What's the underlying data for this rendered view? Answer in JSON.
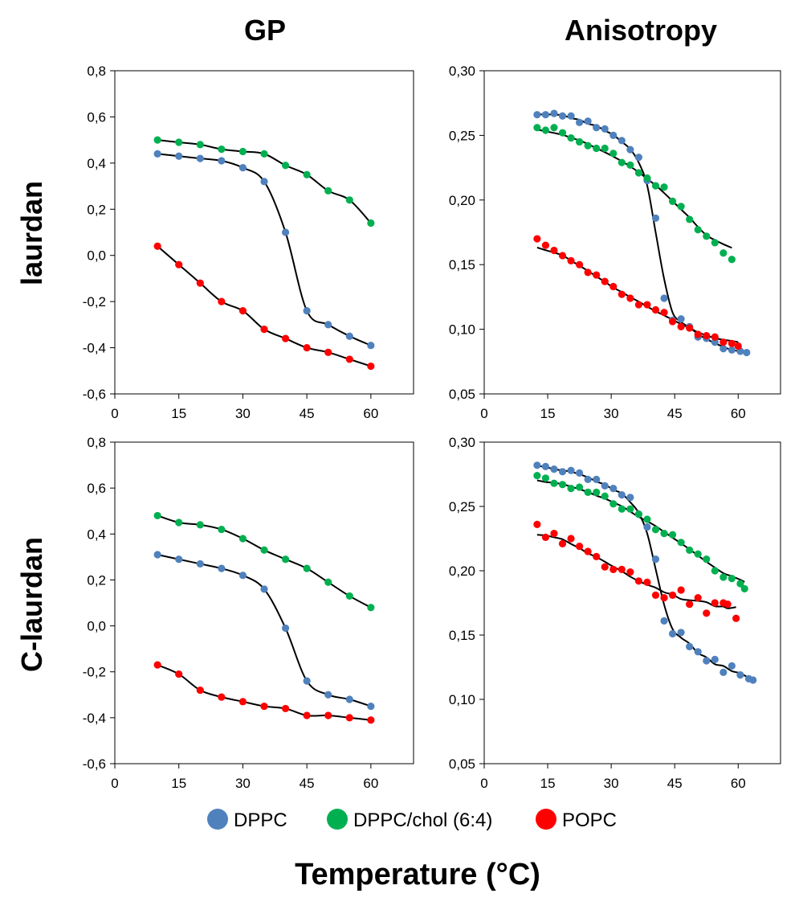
{
  "titles": {
    "col_left": "GP",
    "col_right": "Anisotropy",
    "row_top": "laurdan",
    "row_bottom": "C-laurdan",
    "xlabel": "Temperature (°C)"
  },
  "legend": [
    {
      "name": "DPPC",
      "color": "#4f81bd"
    },
    {
      "name": "DPPC/chol (6:4)",
      "color": "#00b050"
    },
    {
      "name": "POPC",
      "color": "#ff0000"
    }
  ],
  "chart_data": [
    {
      "type": "scatter",
      "panel": "laurdan-GP",
      "xlim": [
        0,
        70
      ],
      "ylim": [
        -0.6,
        0.8
      ],
      "xticks": [
        "0",
        "15",
        "30",
        "45",
        "60"
      ],
      "yticks": [
        "-0,6",
        "-0,4",
        "-0,2",
        "0,0",
        "0,2",
        "0,4",
        "0,6",
        "0,8"
      ],
      "series": [
        {
          "name": "DPPC",
          "x": [
            10,
            15,
            20,
            25,
            30,
            35,
            40,
            45,
            50,
            55,
            60
          ],
          "y": [
            0.44,
            0.43,
            0.42,
            0.41,
            0.38,
            0.32,
            0.1,
            -0.24,
            -0.3,
            -0.35,
            -0.39
          ]
        },
        {
          "name": "DPPC/chol (6:4)",
          "x": [
            10,
            15,
            20,
            25,
            30,
            35,
            40,
            45,
            50,
            55,
            60
          ],
          "y": [
            0.5,
            0.49,
            0.48,
            0.46,
            0.45,
            0.44,
            0.39,
            0.35,
            0.28,
            0.24,
            0.14
          ]
        },
        {
          "name": "POPC",
          "x": [
            10,
            15,
            20,
            25,
            30,
            35,
            40,
            45,
            50,
            55,
            60
          ],
          "y": [
            0.04,
            -0.04,
            -0.12,
            -0.2,
            -0.24,
            -0.32,
            -0.36,
            -0.4,
            -0.42,
            -0.45,
            -0.48
          ]
        }
      ]
    },
    {
      "type": "scatter",
      "panel": "laurdan-Anisotropy",
      "xlim": [
        0,
        70
      ],
      "ylim": [
        0.05,
        0.3
      ],
      "xticks": [
        "0",
        "15",
        "30",
        "45",
        "60"
      ],
      "yticks": [
        "0,05",
        "0,10",
        "0,15",
        "0,20",
        "0,25",
        "0,30"
      ],
      "series": [
        {
          "name": "DPPC",
          "x": [
            12.5,
            14.5,
            16.5,
            18.5,
            20.5,
            22.5,
            24.5,
            26.5,
            28.5,
            30.5,
            32.5,
            34.5,
            36.5,
            38.5,
            40.5,
            42.5,
            44.5,
            46.5,
            48.5,
            50.5,
            52.5,
            54.5,
            56.5,
            58.5,
            60.5,
            62.0
          ],
          "y": [
            0.266,
            0.266,
            0.267,
            0.265,
            0.265,
            0.26,
            0.261,
            0.256,
            0.255,
            0.25,
            0.246,
            0.239,
            0.233,
            0.215,
            0.186,
            0.124,
            0.107,
            0.108,
            0.102,
            0.094,
            0.093,
            0.09,
            0.085,
            0.084,
            0.083,
            0.082
          ]
        },
        {
          "name": "DPPC/chol (6:4)",
          "x": [
            12.5,
            14.5,
            16.5,
            18.5,
            20.5,
            22.5,
            24.5,
            26.5,
            28.5,
            30.5,
            32.5,
            34.5,
            36.5,
            38.5,
            40.5,
            42.5,
            44.5,
            46.5,
            48.5,
            50.5,
            52.5,
            54.5,
            56.5,
            58.5
          ],
          "y": [
            0.256,
            0.254,
            0.256,
            0.252,
            0.248,
            0.245,
            0.242,
            0.24,
            0.24,
            0.236,
            0.229,
            0.227,
            0.221,
            0.217,
            0.211,
            0.21,
            0.199,
            0.195,
            0.185,
            0.177,
            0.172,
            0.167,
            0.159,
            0.154
          ]
        },
        {
          "name": "POPC",
          "x": [
            12.5,
            14.5,
            16.5,
            18.5,
            20.5,
            22.5,
            24.5,
            26.5,
            28.5,
            30.5,
            32.5,
            34.5,
            36.5,
            38.5,
            40.5,
            42.5,
            44.5,
            46.5,
            48.5,
            50.5,
            52.5,
            54.5,
            56.5,
            58.5,
            60.0
          ],
          "y": [
            0.17,
            0.165,
            0.161,
            0.157,
            0.153,
            0.15,
            0.144,
            0.142,
            0.137,
            0.133,
            0.127,
            0.124,
            0.119,
            0.119,
            0.115,
            0.113,
            0.106,
            0.102,
            0.101,
            0.096,
            0.095,
            0.094,
            0.09,
            0.089,
            0.087
          ]
        }
      ]
    },
    {
      "type": "scatter",
      "panel": "C-laurdan-GP",
      "xlim": [
        0,
        70
      ],
      "ylim": [
        -0.6,
        0.8
      ],
      "xticks": [
        "0",
        "15",
        "30",
        "45",
        "60"
      ],
      "yticks": [
        "-0,6",
        "-0,4",
        "-0,2",
        "0,0",
        "0,2",
        "0,4",
        "0,6",
        "0,8"
      ],
      "series": [
        {
          "name": "DPPC",
          "x": [
            10,
            15,
            20,
            25,
            30,
            35,
            40,
            45,
            50,
            55,
            60
          ],
          "y": [
            0.31,
            0.29,
            0.27,
            0.25,
            0.22,
            0.16,
            -0.01,
            -0.24,
            -0.3,
            -0.32,
            -0.35
          ]
        },
        {
          "name": "DPPC/chol (6:4)",
          "x": [
            10,
            15,
            20,
            25,
            30,
            35,
            40,
            45,
            50,
            55,
            60
          ],
          "y": [
            0.48,
            0.45,
            0.44,
            0.42,
            0.38,
            0.33,
            0.29,
            0.25,
            0.19,
            0.13,
            0.08
          ]
        },
        {
          "name": "POPC",
          "x": [
            10,
            15,
            20,
            25,
            30,
            35,
            40,
            45,
            50,
            55,
            60
          ],
          "y": [
            -0.17,
            -0.21,
            -0.28,
            -0.31,
            -0.33,
            -0.35,
            -0.36,
            -0.39,
            -0.39,
            -0.4,
            -0.41
          ]
        }
      ]
    },
    {
      "type": "scatter",
      "panel": "C-laurdan-Anisotropy",
      "xlim": [
        0,
        70
      ],
      "ylim": [
        0.05,
        0.3
      ],
      "xticks": [
        "0",
        "15",
        "30",
        "45",
        "60"
      ],
      "yticks": [
        "0,05",
        "0,10",
        "0,15",
        "0,20",
        "0,25",
        "0,30"
      ],
      "series": [
        {
          "name": "DPPC",
          "x": [
            12.5,
            14.5,
            16.5,
            18.5,
            20.5,
            22.5,
            24.5,
            26.5,
            28.5,
            30.5,
            32.5,
            34.5,
            36.5,
            38.5,
            40.5,
            42.5,
            44.5,
            46.5,
            48.5,
            50.5,
            52.5,
            54.5,
            56.5,
            58.5,
            60.5,
            62.5,
            63.5
          ],
          "y": [
            0.282,
            0.281,
            0.279,
            0.277,
            0.278,
            0.276,
            0.271,
            0.271,
            0.266,
            0.264,
            0.259,
            0.257,
            0.244,
            0.234,
            0.209,
            0.161,
            0.151,
            0.152,
            0.141,
            0.137,
            0.13,
            0.131,
            0.121,
            0.126,
            0.119,
            0.116,
            0.115
          ]
        },
        {
          "name": "DPPC/chol (6:4)",
          "x": [
            12.5,
            14.5,
            16.5,
            18.5,
            20.5,
            22.5,
            24.5,
            26.5,
            28.5,
            30.5,
            32.5,
            34.5,
            36.5,
            38.5,
            40.5,
            42.5,
            44.5,
            46.5,
            48.5,
            50.5,
            52.5,
            54.5,
            56.5,
            58.5,
            60.5,
            61.5
          ],
          "y": [
            0.274,
            0.272,
            0.268,
            0.267,
            0.264,
            0.265,
            0.261,
            0.261,
            0.258,
            0.252,
            0.248,
            0.248,
            0.244,
            0.24,
            0.232,
            0.229,
            0.228,
            0.222,
            0.216,
            0.213,
            0.209,
            0.2,
            0.195,
            0.194,
            0.19,
            0.186
          ]
        },
        {
          "name": "POPC",
          "x": [
            12.5,
            14.5,
            16.5,
            18.5,
            20.5,
            22.5,
            24.5,
            26.5,
            28.5,
            30.5,
            32.5,
            34.5,
            36.5,
            38.5,
            40.5,
            42.5,
            44.5,
            46.5,
            48.5,
            50.5,
            52.5,
            54.5,
            56.5,
            57.5,
            59.5
          ],
          "y": [
            0.236,
            0.226,
            0.229,
            0.221,
            0.225,
            0.219,
            0.215,
            0.211,
            0.203,
            0.201,
            0.201,
            0.199,
            0.192,
            0.191,
            0.181,
            0.179,
            0.181,
            0.185,
            0.174,
            0.179,
            0.167,
            0.175,
            0.175,
            0.174,
            0.163
          ]
        }
      ]
    }
  ]
}
